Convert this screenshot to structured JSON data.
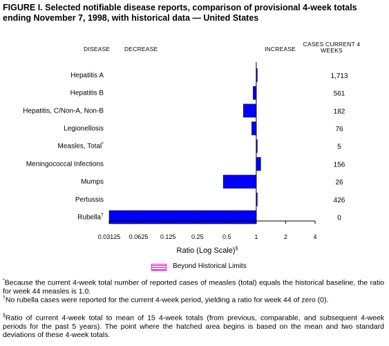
{
  "title": "FIGURE I. Selected notifiable disease reports, comparison of provisional 4-week totals ending November 7, 1998, with historical data — United States",
  "headers": {
    "disease": "DISEASE",
    "decrease": "DECREASE",
    "increase": "INCREASE",
    "cases": "CASES CURRENT 4 WEEKS"
  },
  "chart_data": {
    "type": "bar",
    "orientation": "horizontal",
    "scale": "log2",
    "xlabel": "Ratio (Log Scale)",
    "xlabel_mark": "§",
    "xlim": [
      0.03125,
      4
    ],
    "ticks": [
      "0.03125",
      "0.0625",
      "0.125",
      "0.25",
      "0.5",
      "1",
      "2",
      "4"
    ],
    "tick_values": [
      0.03125,
      0.0625,
      0.125,
      0.25,
      0.5,
      1,
      2,
      4
    ],
    "baseline": 1,
    "bar_color": "#0000ff",
    "categories": [
      "Hepatitis A",
      "Hepatitis B",
      "Hepatitis, C/Non-A, Non-B",
      "Legionellosis",
      "Measles, Total",
      "Meningococcal Infections",
      "Mumps",
      "Pertussis",
      "Rubella"
    ],
    "category_marks": [
      "",
      "",
      "",
      "",
      "*",
      "",
      "",
      "",
      "†"
    ],
    "values": [
      1.02,
      0.93,
      0.74,
      0.9,
      1.0,
      1.11,
      0.46,
      1.02,
      0.03125
    ],
    "cases": [
      "1,713",
      "561",
      "182",
      "76",
      "5",
      "156",
      "26",
      "426",
      "0"
    ]
  },
  "legend": {
    "label": "Beyond Historical Limits",
    "color": "#ff00ff"
  },
  "footnotes": [
    {
      "mark": "*",
      "text": "Because the current 4-week total number of reported cases of measles (total) equals the historical baseline, the ratio for week 44 measles is 1.0."
    },
    {
      "mark": "†",
      "text": "No rubella cases were reported for the current 4-week period, yielding a ratio for week 44 of zero (0)."
    },
    {
      "mark": "§",
      "text": "Ratio of current 4-week total to mean of 15 4-week totals (from previous, comparable, and subsequent 4-week periods for the past 5 years). The point where the hatched area begins is based on the mean and two standard deviations of these 4-week totals."
    }
  ]
}
